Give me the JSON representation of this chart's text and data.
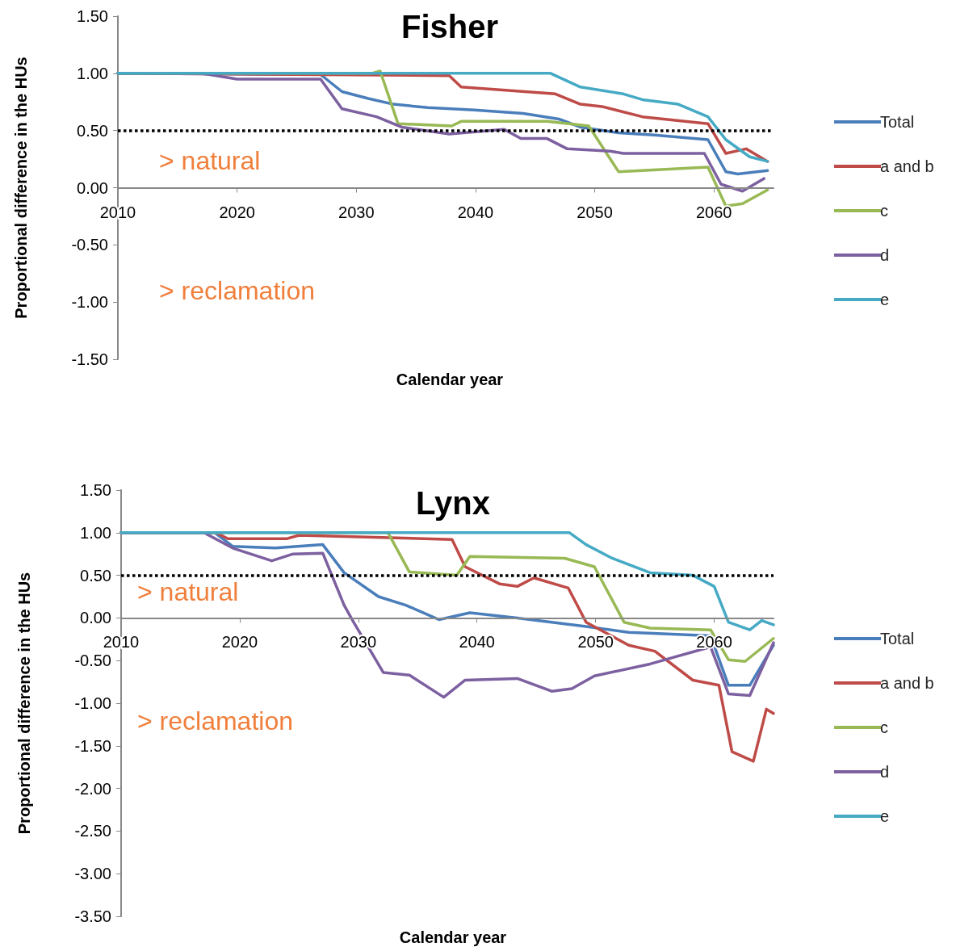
{
  "chart_data": [
    {
      "type": "line",
      "title": "Fisher",
      "xlabel": "Calendar year",
      "ylabel": "Proportional difference in the HUs",
      "legend": "right",
      "marker": "none",
      "line_style": "solid",
      "grid": false,
      "xlim": [
        2010,
        2065
      ],
      "xticks": [
        2010,
        2020,
        2030,
        2040,
        2050,
        2060
      ],
      "ylim": [
        -1.5,
        1.5
      ],
      "yticks": [
        {
          "value": -1.5,
          "label": "-1.50"
        },
        {
          "value": -1,
          "label": "-1.00"
        },
        {
          "value": -0.5,
          "label": "-0.50"
        },
        {
          "value": 0,
          "label": "0.00"
        },
        {
          "value": 0.5,
          "label": "0.50"
        },
        {
          "value": 1,
          "label": "1.00"
        },
        {
          "value": 1.5,
          "label": "1.50"
        }
      ],
      "ref_lines": [
        {
          "axis": "y",
          "value": 0.5,
          "color": "#000000",
          "line_style": "dotted"
        }
      ],
      "annotations": [
        "> natural",
        "> reclamation"
      ],
      "series": [
        {
          "name": "Total",
          "color": "#4a7ebb",
          "x": [
            2010,
            2027,
            2028.8,
            2031,
            2033.1,
            2036,
            2039.9,
            2044,
            2047,
            2048.8,
            2052,
            2055,
            2059.5,
            2061,
            2062,
            2064.5
          ],
          "values": [
            1.0,
            0.99,
            0.84,
            0.78,
            0.73,
            0.7,
            0.68,
            0.65,
            0.6,
            0.53,
            0.48,
            0.46,
            0.42,
            0.14,
            0.12,
            0.15
          ]
        },
        {
          "name": "a and b",
          "color": "#be4b48",
          "x": [
            2010,
            2037.8,
            2038.8,
            2046.7,
            2048.8,
            2050.6,
            2054,
            2059.5,
            2061,
            2062.7,
            2064.5
          ],
          "values": [
            1.0,
            0.98,
            0.88,
            0.82,
            0.73,
            0.71,
            0.62,
            0.56,
            0.3,
            0.34,
            0.23
          ]
        },
        {
          "name": "c",
          "color": "#98b954",
          "x": [
            2010,
            2031.3,
            2032,
            2033.5,
            2038,
            2038.8,
            2046,
            2049.5,
            2052,
            2059.5,
            2061,
            2062.4,
            2064.5
          ],
          "values": [
            1.0,
            1.0,
            1.02,
            0.56,
            0.54,
            0.58,
            0.58,
            0.54,
            0.14,
            0.18,
            -0.16,
            -0.14,
            -0.02
          ]
        },
        {
          "name": "d",
          "color": "#7d60a0",
          "x": [
            2010,
            2017,
            2020,
            2027,
            2028.8,
            2031.7,
            2033.8,
            2037.8,
            2042.4,
            2043.8,
            2046,
            2047.7,
            2051.3,
            2052.4,
            2059.2,
            2060.6,
            2062.4,
            2064.2
          ],
          "values": [
            1.0,
            1.0,
            0.95,
            0.95,
            0.69,
            0.62,
            0.53,
            0.47,
            0.51,
            0.43,
            0.43,
            0.34,
            0.32,
            0.3,
            0.3,
            0.03,
            -0.03,
            0.08
          ]
        },
        {
          "name": "e",
          "color": "#46aac5",
          "x": [
            2010,
            2046.3,
            2048.8,
            2052.4,
            2054,
            2057,
            2059.5,
            2061,
            2063,
            2064.5
          ],
          "values": [
            1.0,
            1.0,
            0.88,
            0.82,
            0.77,
            0.73,
            0.62,
            0.42,
            0.27,
            0.23
          ]
        }
      ]
    },
    {
      "type": "line",
      "title": "Lynx",
      "xlabel": "Calendar year",
      "ylabel": "Proportional difference in the HUs",
      "legend": "right",
      "marker": "none",
      "line_style": "solid",
      "grid": false,
      "xlim": [
        2010,
        2065
      ],
      "xticks": [
        2010,
        2020,
        2030,
        2040,
        2050,
        2060
      ],
      "ylim": [
        -3.5,
        1.5
      ],
      "yticks": [
        {
          "value": -3.5,
          "label": "-3.50"
        },
        {
          "value": -3,
          "label": "-3.00"
        },
        {
          "value": -2.5,
          "label": "-2.50"
        },
        {
          "value": -2,
          "label": "-2.00"
        },
        {
          "value": -1.5,
          "label": "-1.50"
        },
        {
          "value": -1,
          "label": "-1.00"
        },
        {
          "value": -0.5,
          "label": "-0.50"
        },
        {
          "value": 0,
          "label": "0.00"
        },
        {
          "value": 0.5,
          "label": "0.50"
        },
        {
          "value": 1,
          "label": "1.00"
        },
        {
          "value": 1.5,
          "label": "1.50"
        }
      ],
      "ref_lines": [
        {
          "axis": "y",
          "value": 0.5,
          "color": "#000000",
          "line_style": "dotted"
        }
      ],
      "annotations": [
        "> natural",
        "> reclamation"
      ],
      "series": [
        {
          "name": "Total",
          "color": "#4a7ebb",
          "x": [
            2010,
            2017.9,
            2019.4,
            2023,
            2027,
            2028.8,
            2031.7,
            2034,
            2036.8,
            2039.4,
            2043.4,
            2049.2,
            2052.8,
            2059.7,
            2061.2,
            2063,
            2065
          ],
          "values": [
            1.0,
            1.0,
            0.84,
            0.82,
            0.86,
            0.53,
            0.25,
            0.15,
            -0.02,
            0.06,
            0.0,
            -0.1,
            -0.17,
            -0.21,
            -0.79,
            -0.79,
            -0.32
          ]
        },
        {
          "name": "a and b",
          "color": "#be4b48",
          "x": [
            2010,
            2018,
            2019,
            2024,
            2025,
            2037.9,
            2039,
            2041.9,
            2043.4,
            2044.8,
            2047.7,
            2049.2,
            2052.8,
            2055,
            2058.2,
            2060.4,
            2061.5,
            2063.3,
            2064.4,
            2065
          ],
          "values": [
            1.0,
            1.0,
            0.93,
            0.93,
            0.97,
            0.92,
            0.6,
            0.4,
            0.37,
            0.47,
            0.35,
            -0.05,
            -0.32,
            -0.39,
            -0.73,
            -0.79,
            -1.57,
            -1.68,
            -1.07,
            -1.12
          ]
        },
        {
          "name": "c",
          "color": "#98b954",
          "x": [
            2010,
            2032.5,
            2034.3,
            2038.3,
            2039.4,
            2047.4,
            2049.9,
            2052.4,
            2054.6,
            2059.7,
            2061.2,
            2062.6,
            2065
          ],
          "values": [
            1.0,
            1.0,
            0.54,
            0.5,
            0.72,
            0.7,
            0.6,
            -0.05,
            -0.12,
            -0.14,
            -0.49,
            -0.51,
            -0.24
          ]
        },
        {
          "name": "d",
          "color": "#7d60a0",
          "x": [
            2010,
            2017,
            2019.4,
            2022.7,
            2024.5,
            2027,
            2028.8,
            2029.6,
            2032.1,
            2034.3,
            2037.2,
            2039,
            2043.4,
            2046.3,
            2048,
            2049.9,
            2054.6,
            2059.7,
            2061.2,
            2063,
            2065
          ],
          "values": [
            1.0,
            1.0,
            0.82,
            0.67,
            0.75,
            0.76,
            0.15,
            -0.05,
            -0.64,
            -0.67,
            -0.93,
            -0.73,
            -0.71,
            -0.86,
            -0.83,
            -0.68,
            -0.54,
            -0.34,
            -0.89,
            -0.91,
            -0.29
          ]
        },
        {
          "name": "e",
          "color": "#46aac5",
          "x": [
            2010,
            2047.8,
            2049.2,
            2051.4,
            2054.6,
            2058.2,
            2060,
            2061.2,
            2063,
            2064,
            2065
          ],
          "values": [
            1.0,
            1.0,
            0.86,
            0.7,
            0.53,
            0.5,
            0.37,
            -0.05,
            -0.14,
            -0.03,
            -0.08
          ]
        }
      ]
    }
  ]
}
